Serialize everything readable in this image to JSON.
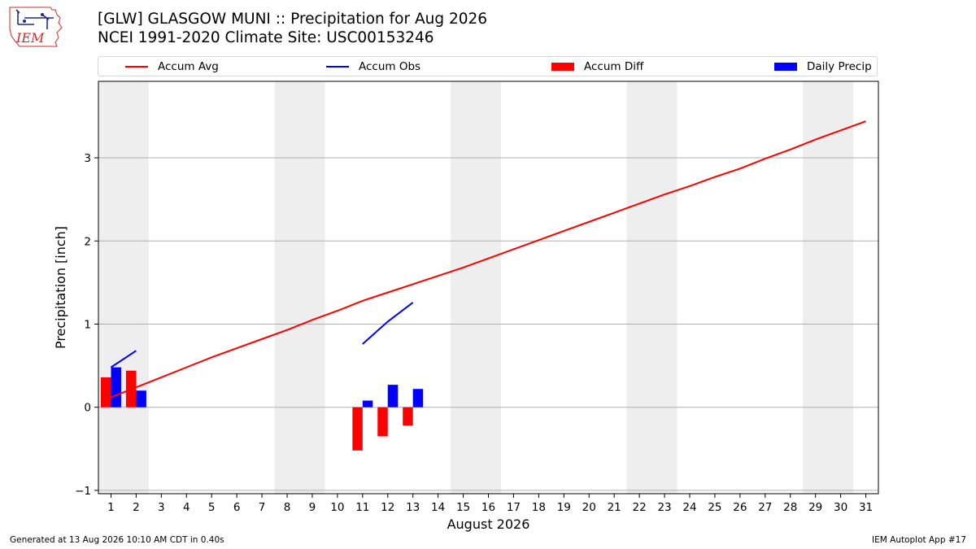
{
  "header": {
    "title_line1": "[GLW] GLASGOW MUNI :: Precipitation for Aug 2026",
    "title_line2": "NCEI 1991-2020 Climate Site: USC00153246"
  },
  "logo": {
    "text": "IEM",
    "color": "#d42a2a"
  },
  "legend": {
    "items": [
      {
        "label": "Accum Avg",
        "kind": "line",
        "color": "#ff0000"
      },
      {
        "label": "Accum Obs",
        "kind": "line",
        "color": "#0000ff"
      },
      {
        "label": "Accum Diff",
        "kind": "box",
        "color": "#ff0000"
      },
      {
        "label": "Daily Precip",
        "kind": "box",
        "color": "#0000ff"
      }
    ]
  },
  "footer": {
    "left": "Generated at 13 Aug 2026 10:10 AM CDT in 0.40s",
    "right": "IEM Autoplot App #17"
  },
  "chart_data": {
    "type": "bar",
    "xlabel": "August 2026",
    "ylabel": "Precipitation [inch]",
    "xlim": [
      0.5,
      31.5
    ],
    "ylim": [
      -1.04,
      3.92
    ],
    "yticks": [
      -1,
      0,
      1,
      2,
      3
    ],
    "xticks": [
      1,
      2,
      3,
      4,
      5,
      6,
      7,
      8,
      9,
      10,
      11,
      12,
      13,
      14,
      15,
      16,
      17,
      18,
      19,
      20,
      21,
      22,
      23,
      24,
      25,
      26,
      27,
      28,
      29,
      30,
      31
    ],
    "grid": "horizontal",
    "weekend_shading": [
      [
        1,
        2
      ],
      [
        8,
        9
      ],
      [
        15,
        16
      ],
      [
        22,
        23
      ],
      [
        29,
        30
      ]
    ],
    "shading_color": "#eeeeee",
    "series": [
      {
        "name": "Accum Avg",
        "kind": "line",
        "color": "#ff0000",
        "x": [
          1,
          2,
          3,
          4,
          5,
          6,
          7,
          8,
          9,
          10,
          11,
          12,
          13,
          14,
          15,
          16,
          17,
          18,
          19,
          20,
          21,
          22,
          23,
          24,
          25,
          26,
          27,
          28,
          29,
          30,
          31
        ],
        "values": [
          0.12,
          0.24,
          0.36,
          0.48,
          0.6,
          0.71,
          0.82,
          0.93,
          1.05,
          1.16,
          1.28,
          1.38,
          1.48,
          1.58,
          1.68,
          1.79,
          1.9,
          2.01,
          2.12,
          2.23,
          2.34,
          2.45,
          2.56,
          2.66,
          2.77,
          2.87,
          2.99,
          3.1,
          3.22,
          3.33,
          3.44
        ]
      },
      {
        "name": "Accum Obs",
        "kind": "line",
        "color": "#0000ff",
        "segments": [
          {
            "x": [
              1,
              2
            ],
            "values": [
              0.48,
              0.68
            ]
          },
          {
            "x": [
              11,
              12,
              13
            ],
            "values": [
              0.76,
              1.03,
              1.26
            ]
          }
        ]
      },
      {
        "name": "Accum Diff",
        "kind": "bar",
        "color": "#ff0000",
        "x": [
          1,
          2,
          11,
          12,
          13
        ],
        "values": [
          0.36,
          0.44,
          -0.52,
          -0.35,
          -0.22
        ]
      },
      {
        "name": "Daily Precip",
        "kind": "bar",
        "color": "#0000ff",
        "x": [
          1,
          2,
          11,
          12,
          13
        ],
        "values": [
          0.48,
          0.2,
          0.08,
          0.27,
          0.22
        ]
      }
    ]
  }
}
